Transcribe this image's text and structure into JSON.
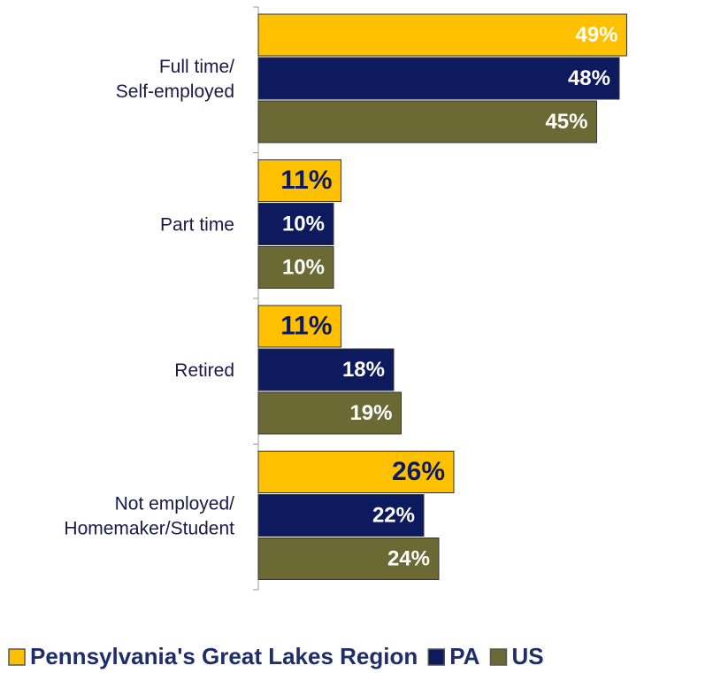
{
  "chart_data": {
    "type": "bar",
    "orientation": "horizontal",
    "categories": [
      [
        "Full time/",
        "Self-employed"
      ],
      [
        "Part time"
      ],
      [
        "Retired"
      ],
      [
        "Not employed/",
        "Homemaker/Student"
      ]
    ],
    "series": [
      {
        "name": "Pennsylvania's Great Lakes Region",
        "color": "#ffc000",
        "values": [
          49,
          11,
          11,
          26
        ],
        "value_labels": [
          "49%",
          "11%",
          "11%",
          "26%"
        ]
      },
      {
        "name": "PA",
        "color": "#0e1a5e",
        "values": [
          48,
          10,
          18,
          22
        ],
        "value_labels": [
          "48%",
          "10%",
          "18%",
          "22%"
        ]
      },
      {
        "name": "US",
        "color": "#6b6a35",
        "values": [
          45,
          10,
          19,
          24
        ],
        "value_labels": [
          "45%",
          "10%",
          "19%",
          "24%"
        ]
      }
    ],
    "xlim": [
      0,
      60
    ],
    "legend": "bottom"
  }
}
